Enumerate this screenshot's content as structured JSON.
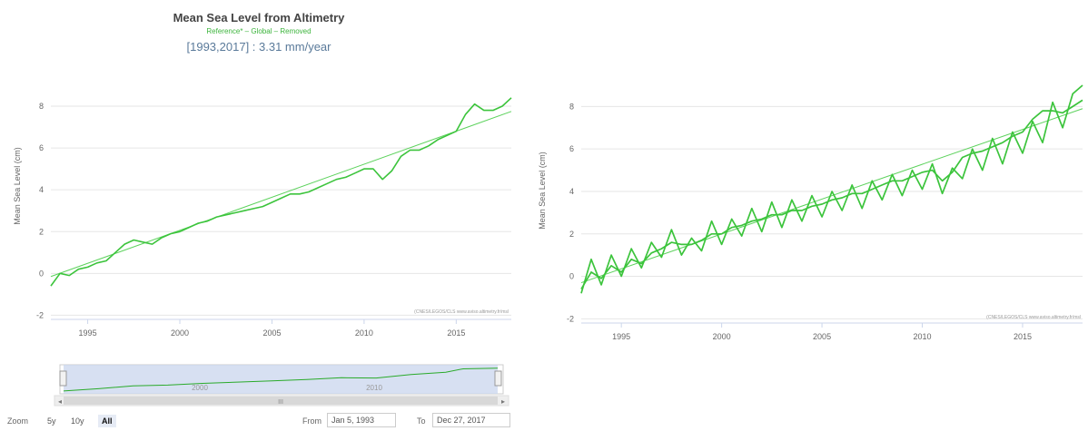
{
  "chart_data": [
    {
      "type": "line",
      "title": "Mean Sea Level from Altimetry",
      "subtitle": "Reference* – Global – Removed",
      "rate_text": "[1993,2017] : 3.31 mm/year",
      "ylabel": "Mean Sea Level (cm)",
      "xlabel": "",
      "credit": "(CNES/LEGOS/CLS www.aviso.altimetry.fr/msl",
      "xlim": [
        1993.0,
        2017.99
      ],
      "ylim": [
        -2.2,
        9.0
      ],
      "x_ticks": [
        1995,
        2000,
        2005,
        2010,
        2015
      ],
      "y_ticks": [
        -2,
        0,
        2,
        4,
        6,
        8
      ],
      "grid": true,
      "trend": {
        "x": [
          1993.0,
          2017.99
        ],
        "y": [
          -0.15,
          7.75
        ]
      },
      "series": [
        {
          "x": [
            1993.0,
            1993.5,
            1994.0,
            1994.5,
            1995.0,
            1995.5,
            1996.0,
            1996.5,
            1997.0,
            1997.5,
            1998.0,
            1998.5,
            1999.0,
            1999.5,
            2000.0,
            2000.5,
            2001.0,
            2001.5,
            2002.0,
            2002.5,
            2003.0,
            2003.5,
            2004.0,
            2004.5,
            2005.0,
            2005.5,
            2006.0,
            2006.5,
            2007.0,
            2007.5,
            2008.0,
            2008.5,
            2009.0,
            2009.5,
            2010.0,
            2010.5,
            2011.0,
            2011.5,
            2012.0,
            2012.5,
            2013.0,
            2013.5,
            2014.0,
            2014.5,
            2015.0,
            2015.5,
            2016.0,
            2016.5,
            2017.0,
            2017.5,
            2017.99
          ],
          "y": [
            -0.6,
            0.0,
            -0.1,
            0.2,
            0.3,
            0.5,
            0.6,
            1.0,
            1.4,
            1.6,
            1.5,
            1.4,
            1.7,
            1.9,
            2.0,
            2.2,
            2.4,
            2.5,
            2.7,
            2.8,
            2.9,
            3.0,
            3.1,
            3.2,
            3.4,
            3.6,
            3.8,
            3.8,
            3.9,
            4.1,
            4.3,
            4.5,
            4.6,
            4.8,
            5.0,
            5.0,
            4.5,
            4.9,
            5.6,
            5.9,
            5.9,
            6.1,
            6.4,
            6.6,
            6.8,
            7.6,
            8.1,
            7.8,
            7.8,
            8.0,
            8.4
          ]
        }
      ]
    },
    {
      "type": "line",
      "title": "",
      "ylabel": "Mean Sea Level (cm)",
      "xlabel": "",
      "credit": "(CNES/LEGOS/CLS www.aviso.altimetry.fr/msl",
      "xlim": [
        1993.0,
        2017.99
      ],
      "ylim": [
        -2.2,
        9.0
      ],
      "x_ticks": [
        1995,
        2000,
        2005,
        2010,
        2015
      ],
      "y_ticks": [
        -2,
        0,
        2,
        4,
        6,
        8
      ],
      "grid": true,
      "trend": {
        "x": [
          1993.0,
          2017.99
        ],
        "y": [
          -0.3,
          7.9
        ]
      },
      "series": [
        {
          "x": [
            1993.0,
            1993.5,
            1994.0,
            1994.5,
            1995.0,
            1995.5,
            1996.0,
            1996.5,
            1997.0,
            1997.5,
            1998.0,
            1998.5,
            1999.0,
            1999.5,
            2000.0,
            2000.5,
            2001.0,
            2001.5,
            2002.0,
            2002.5,
            2003.0,
            2003.5,
            2004.0,
            2004.5,
            2005.0,
            2005.5,
            2006.0,
            2006.5,
            2007.0,
            2007.5,
            2008.0,
            2008.5,
            2009.0,
            2009.5,
            2010.0,
            2010.5,
            2011.0,
            2011.5,
            2012.0,
            2012.5,
            2013.0,
            2013.5,
            2014.0,
            2014.5,
            2015.0,
            2015.5,
            2016.0,
            2016.5,
            2017.0,
            2017.5,
            2017.99
          ],
          "y": [
            -0.8,
            0.8,
            -0.4,
            1.0,
            0.0,
            1.3,
            0.4,
            1.6,
            0.9,
            2.2,
            1.0,
            1.8,
            1.2,
            2.6,
            1.5,
            2.7,
            1.9,
            3.2,
            2.1,
            3.5,
            2.3,
            3.6,
            2.6,
            3.8,
            2.8,
            4.0,
            3.1,
            4.3,
            3.2,
            4.5,
            3.6,
            4.8,
            3.8,
            5.0,
            4.1,
            5.3,
            3.9,
            5.1,
            4.6,
            6.0,
            5.0,
            6.5,
            5.3,
            6.8,
            5.8,
            7.3,
            6.3,
            8.2,
            7.0,
            8.6,
            9.0
          ]
        },
        {
          "x": [
            1993.0,
            1993.5,
            1994.0,
            1994.5,
            1995.0,
            1995.5,
            1996.0,
            1996.5,
            1997.0,
            1997.5,
            1998.0,
            1998.5,
            1999.0,
            1999.5,
            2000.0,
            2000.5,
            2001.0,
            2001.5,
            2002.0,
            2002.5,
            2003.0,
            2003.5,
            2004.0,
            2004.5,
            2005.0,
            2005.5,
            2006.0,
            2006.5,
            2007.0,
            2007.5,
            2008.0,
            2008.5,
            2009.0,
            2009.5,
            2010.0,
            2010.5,
            2011.0,
            2011.5,
            2012.0,
            2012.5,
            2013.0,
            2013.5,
            2014.0,
            2014.5,
            2015.0,
            2015.5,
            2016.0,
            2016.5,
            2017.0,
            2017.5,
            2017.99
          ],
          "y": [
            -0.6,
            0.2,
            -0.1,
            0.5,
            0.2,
            0.8,
            0.6,
            1.1,
            1.3,
            1.6,
            1.5,
            1.5,
            1.7,
            2.0,
            2.0,
            2.3,
            2.4,
            2.6,
            2.7,
            2.9,
            2.9,
            3.1,
            3.1,
            3.3,
            3.4,
            3.6,
            3.7,
            3.9,
            3.9,
            4.1,
            4.3,
            4.5,
            4.5,
            4.7,
            4.9,
            5.0,
            4.5,
            4.9,
            5.6,
            5.8,
            5.9,
            6.1,
            6.3,
            6.6,
            6.8,
            7.4,
            7.8,
            7.8,
            7.7,
            8.0,
            8.3
          ]
        }
      ]
    }
  ],
  "navigator": {
    "tick_labels": [
      "2000",
      "2010"
    ],
    "x": [
      1993.0,
      1995.0,
      1997.0,
      1999.0,
      2001.0,
      2003.0,
      2005.0,
      2007.0,
      2009.0,
      2011.0,
      2013.0,
      2015.0,
      2016.0,
      2017.99
    ],
    "y": [
      -0.6,
      0.3,
      1.4,
      1.7,
      2.4,
      2.9,
      3.4,
      3.9,
      4.6,
      4.5,
      5.9,
      6.8,
      8.1,
      8.4
    ],
    "scroll_glyph": "III",
    "left_arrow": "◂",
    "right_arrow": "▸"
  },
  "controls": {
    "zoom_label": "Zoom",
    "buttons": [
      "5y",
      "10y",
      "All"
    ],
    "active_button": "All",
    "from_label": "From",
    "from_value": "Jan 5, 1993",
    "to_label": "To",
    "to_value": "Dec 27, 2017"
  },
  "colors": {
    "series": "#3cc43c",
    "trend": "#5cd25c",
    "navigator_mask": "#c9d6ee"
  }
}
